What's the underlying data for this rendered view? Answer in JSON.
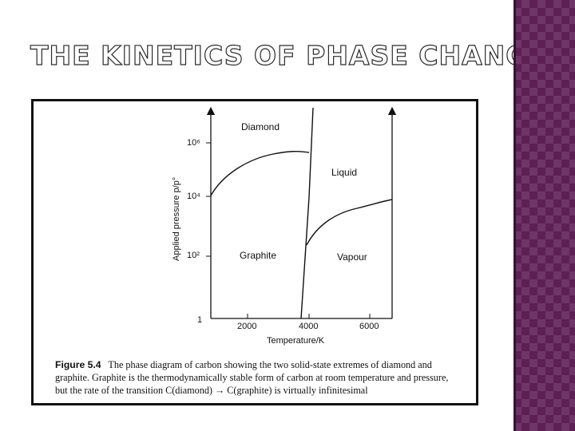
{
  "slide": {
    "title": "THE KINETICS OF PHASE CHANGES",
    "colors": {
      "strip": "#5e1f55",
      "title_outline": "#2a2a2a"
    }
  },
  "figure": {
    "caption_label": "Figure 5.4",
    "caption_line1": "The phase diagram of carbon showing the two solid-state extremes of diamond and",
    "caption_line2": "graphite. Graphite is the thermodynamically stable form of carbon at room temperature and pressure,",
    "caption_line3": "but the rate of the transition C(diamond) → C(graphite) is virtually infinitesimal"
  },
  "chart_data": {
    "type": "line",
    "xlabel": "Temperature/K",
    "ylabel": "Applied pressure p/p°",
    "x_ticks": [
      "2000",
      "4000",
      "6000"
    ],
    "y_ticks": [
      "1",
      "10²",
      "10⁴",
      "10⁶"
    ],
    "yscale": "log",
    "regions": [
      "Diamond",
      "Liquid",
      "Graphite",
      "Vapour"
    ],
    "series": [
      {
        "x": [
          1500,
          2000,
          3000,
          4000
        ],
        "y": [
          4.0,
          4.6,
          5.4,
          5.6
        ]
      },
      {
        "x": [
          3900,
          4050,
          4200
        ],
        "y": [
          0,
          4.5,
          7.0
        ]
      },
      {
        "x": [
          4000,
          4600,
          5500,
          6500
        ],
        "y": [
          2.0,
          2.9,
          3.4,
          3.7
        ]
      }
    ]
  }
}
